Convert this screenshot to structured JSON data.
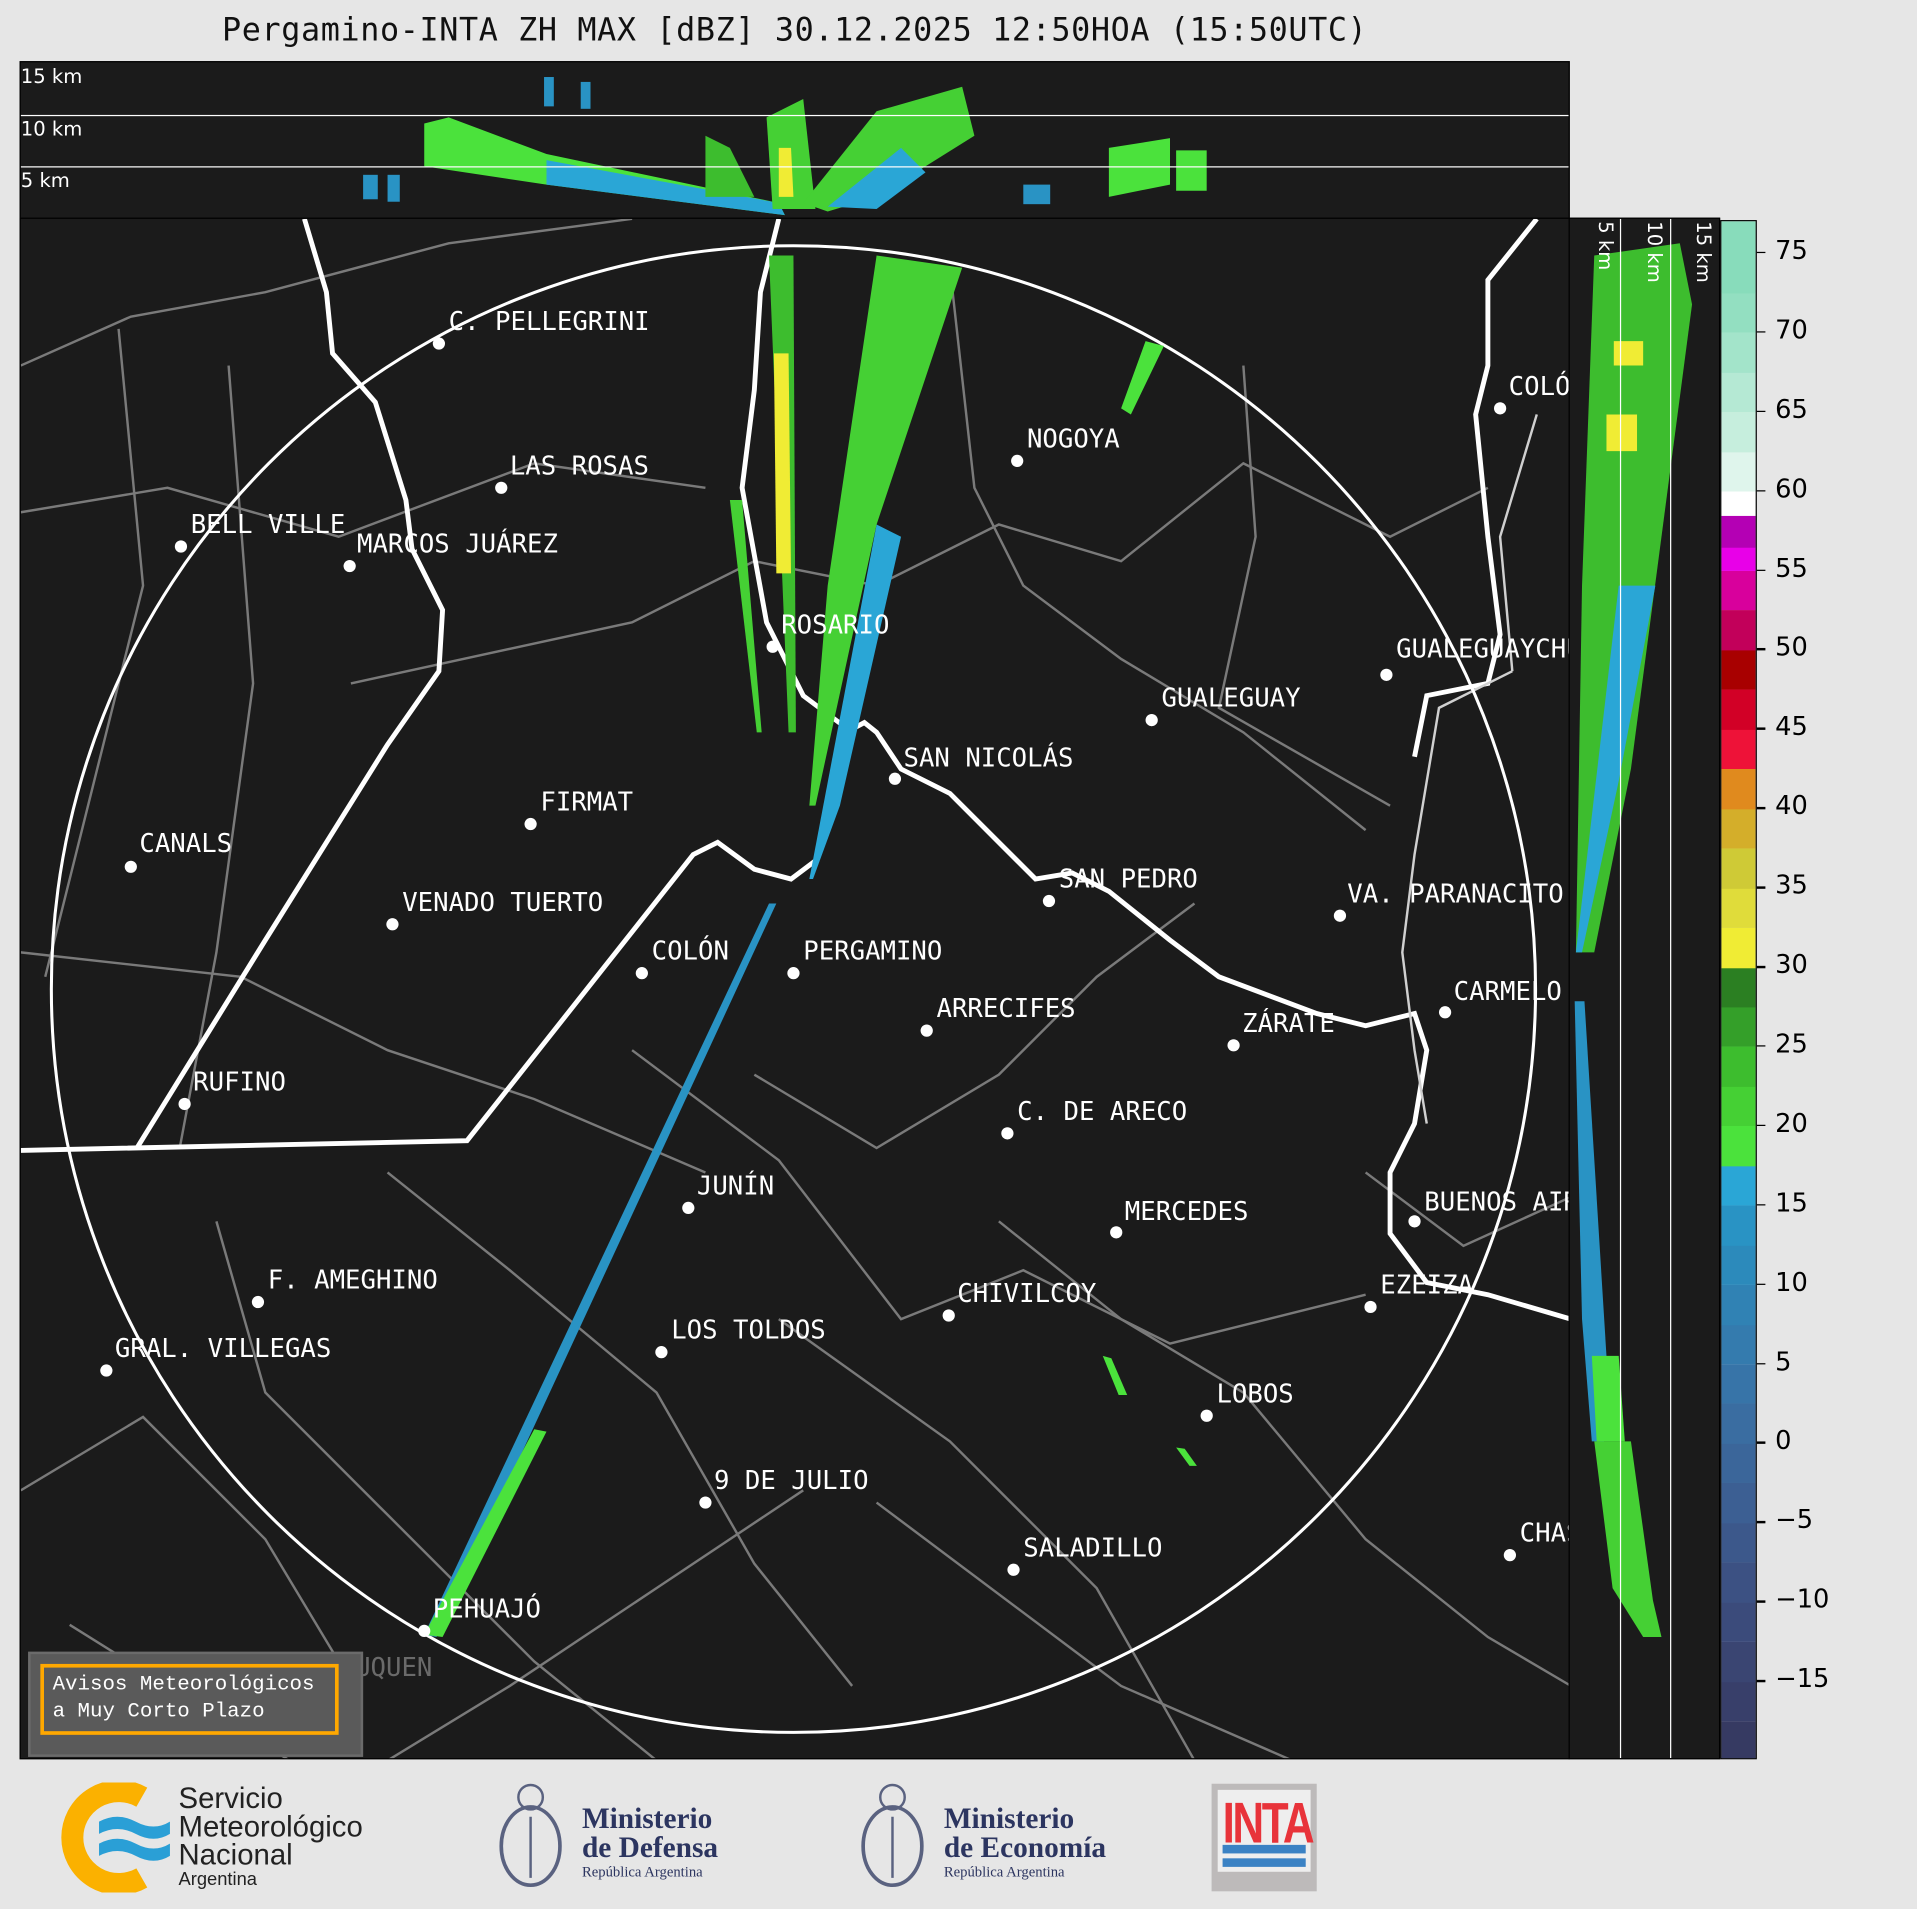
{
  "title": "Pergamino-INTA ZH MAX [dBZ] 30.12.2025 12:50HOA (15:50UTC)",
  "top_panel": {
    "height_labels": [
      "15 km",
      "10 km",
      "5 km"
    ]
  },
  "side_panel": {
    "height_labels": [
      "5 km",
      "10 km",
      "15 km"
    ]
  },
  "colorbar": {
    "unit": "dBZ",
    "range": [
      -20,
      77
    ],
    "ticks": [
      "75",
      "70",
      "65",
      "60",
      "55",
      "50",
      "45",
      "40",
      "35",
      "30",
      "25",
      "20",
      "15",
      "10",
      "5",
      "0",
      "−5",
      "−10",
      "−15"
    ],
    "tick_values": [
      75,
      70,
      65,
      60,
      55,
      50,
      45,
      40,
      35,
      30,
      25,
      20,
      15,
      10,
      5,
      0,
      -5,
      -10,
      -15
    ],
    "bands": [
      [
        -20,
        "#363a62"
      ],
      [
        -17.5,
        "#383f6a"
      ],
      [
        -15,
        "#3a4572"
      ],
      [
        -12.5,
        "#3b4b7b"
      ],
      [
        -10,
        "#3c5183"
      ],
      [
        -7.5,
        "#3c588b"
      ],
      [
        -5,
        "#3c5f93"
      ],
      [
        -2.5,
        "#3b669a"
      ],
      [
        0,
        "#3a6da1"
      ],
      [
        2.5,
        "#3774a8"
      ],
      [
        5,
        "#347bae"
      ],
      [
        7.5,
        "#3082b4"
      ],
      [
        10,
        "#2c8abb"
      ],
      [
        12.5,
        "#2993c4"
      ],
      [
        15,
        "#2aa6d6"
      ],
      [
        17.5,
        "#4be23c"
      ],
      [
        20,
        "#45d034"
      ],
      [
        22.5,
        "#3dbd2e"
      ],
      [
        25,
        "#349f29"
      ],
      [
        27.5,
        "#2b7f22"
      ],
      [
        30,
        "#f0ec34"
      ],
      [
        32.5,
        "#e0dc3a"
      ],
      [
        35,
        "#cfca36"
      ],
      [
        37.5,
        "#d4ae2a"
      ],
      [
        40,
        "#e08a1e"
      ],
      [
        42.5,
        "#ee1238"
      ],
      [
        45,
        "#d20026"
      ],
      [
        47.5,
        "#a80000"
      ],
      [
        50,
        "#c2005a"
      ],
      [
        52.5,
        "#d8009c"
      ],
      [
        55,
        "#e800e8"
      ],
      [
        56.5,
        "#b400b4"
      ],
      [
        58.5,
        "#ffffff"
      ],
      [
        60,
        "#dff5ec"
      ],
      [
        62.5,
        "#c6eedd"
      ],
      [
        65,
        "#b5e9d4"
      ],
      [
        67.5,
        "#a3e4ca"
      ],
      [
        70,
        "#93dfc1"
      ],
      [
        72.5,
        "#88dcbb"
      ]
    ]
  },
  "range_ring": "Pergamino radar range",
  "cities": [
    "C. PELLEGRINI",
    "LAS ROSAS",
    "BELL VILLE",
    "MARCOS JUÁREZ",
    "NOGOYA",
    "ROSARIO",
    "GUALEGUAYCHÚ",
    "GUALEGUAY",
    "SAN NICOLÁS",
    "FIRMAT",
    "CANALS",
    "SAN PEDRO",
    "VA. PARANACITO",
    "VENADO TUERTO",
    "COLÓN",
    "PERGAMINO",
    "CARMELO",
    "ARRECIFES",
    "ZÁRATE",
    "RUFINO",
    "C. DE ARECO",
    "JUNÍN",
    "BUENOS AIRES",
    "MERCEDES",
    "F. AMEGHINO",
    "EZEIZA",
    "CHIVILCOY",
    "GRAL. VILLEGAS",
    "LOS TOLDOS",
    "LOBOS",
    "9 DE JULIO",
    "CHASCOMÚS",
    "SALADILLO",
    "PEHUAJÓ",
    "COLÓN",
    "TRENQUE LAUQUEN"
  ],
  "notice": {
    "line1": "Avisos Meteorológicos",
    "line2": "a Muy Corto Plazo"
  },
  "logos": {
    "smn": [
      "Servicio",
      "Meteorológico",
      "Nacional",
      "Argentina"
    ],
    "defensa": [
      "Ministerio",
      "de Defensa",
      "República Argentina"
    ],
    "economia": [
      "Ministerio",
      "de Economía",
      "República Argentina"
    ],
    "inta": "INTA"
  },
  "colors": {
    "map_bg": "#1b1b1b",
    "notice_border": "#ffa800",
    "inta_red": "#e8333a",
    "inta_blue": "#3b82c4",
    "smn_orange": "#fbb100",
    "smn_blue": "#2a9fd6"
  }
}
